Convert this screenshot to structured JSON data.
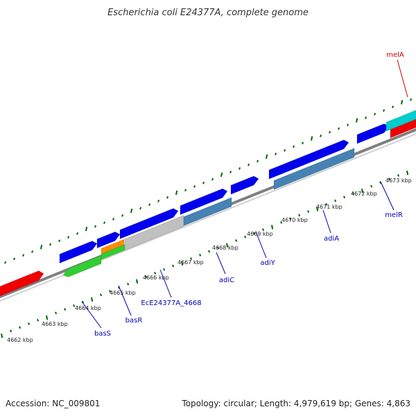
{
  "title": "Escherichia coli E24377A, complete genome",
  "footer": {
    "accession": "Accession: NC_009801",
    "summary": "Topology: circular; Length: 4,979,619 bp; Genes: 4,863"
  },
  "colors": {
    "forward_cds": "#0000ee",
    "reverse_cds": "#4682b4",
    "green_feature": "#32cd32",
    "grey_feature": "#c0c0c0",
    "orange_feature": "#ff8c00",
    "red_feature": "#ee0000",
    "cyan_feature": "#00cdcd",
    "tick": "#006400",
    "backbone": "#808080"
  },
  "ticks": [
    {
      "label": "4662 kbp"
    },
    {
      "label": "4663 kbp"
    },
    {
      "label": "4664 kbp"
    },
    {
      "label": "4665 kbp"
    },
    {
      "label": "4666 kbp"
    },
    {
      "label": "4667 kbp"
    },
    {
      "label": "4668 kbp"
    },
    {
      "label": "4669 kbp"
    },
    {
      "label": "4670 kbp"
    },
    {
      "label": "4671 kbp"
    },
    {
      "label": "4672 kbp"
    },
    {
      "label": "4673 kbp"
    }
  ],
  "gene_labels": [
    {
      "name": "melA",
      "color": "#cc0000"
    },
    {
      "name": "melR",
      "color": "#0000aa"
    },
    {
      "name": "adiA",
      "color": "#0000aa"
    },
    {
      "name": "adiY",
      "color": "#0000aa"
    },
    {
      "name": "adiC",
      "color": "#0000aa"
    },
    {
      "name": "EcE24377A_4668",
      "color": "#0000aa"
    },
    {
      "name": "basR",
      "color": "#0000aa"
    },
    {
      "name": "basS",
      "color": "#0000aa"
    }
  ]
}
